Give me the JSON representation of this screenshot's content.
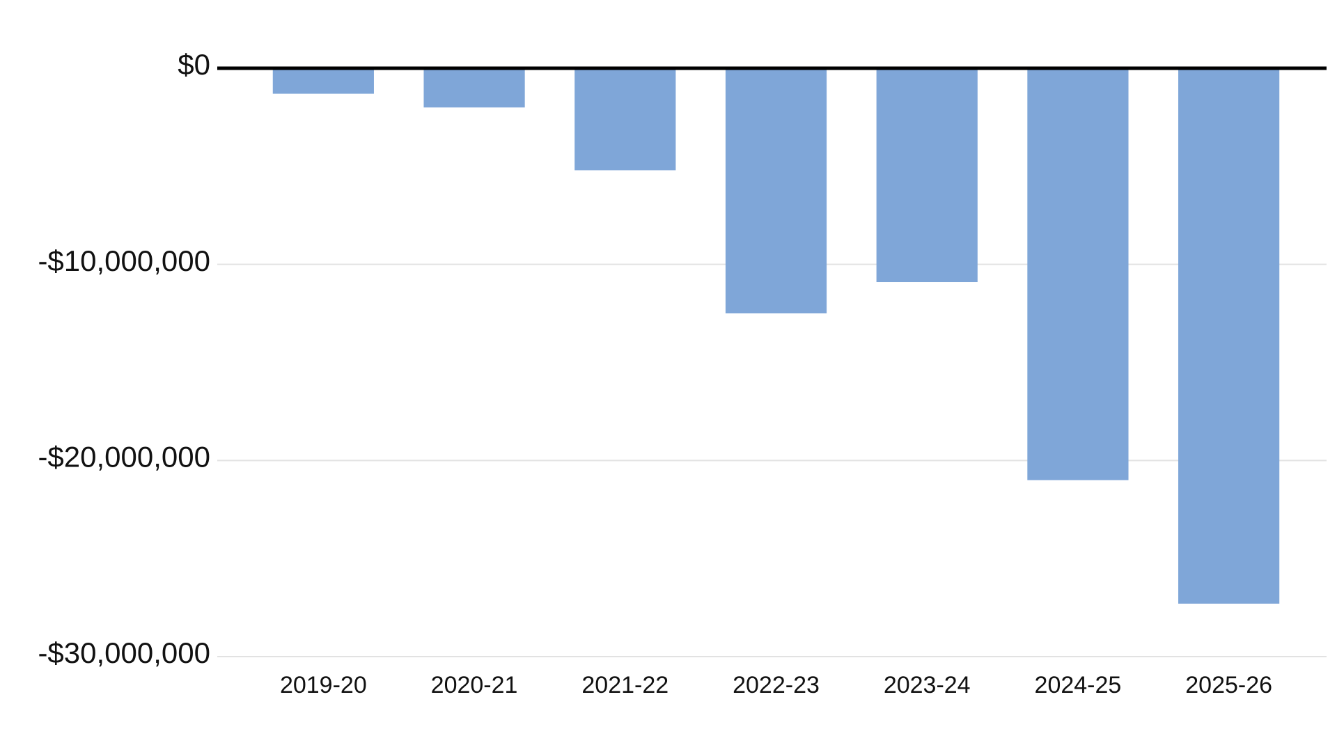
{
  "chart_data": {
    "type": "bar",
    "categories": [
      "2019-20",
      "2020-21",
      "2021-22",
      "2022-23",
      "2023-24",
      "2024-25",
      "2025-26"
    ],
    "values": [
      -1300000,
      -2000000,
      -5200000,
      -12500000,
      -10900000,
      -21000000,
      -27300000
    ],
    "color": "#7fa6d8",
    "ylim": [
      -30000000,
      0
    ],
    "yticks": [
      {
        "value": 0,
        "label": "$0"
      },
      {
        "value": -10000000,
        "label": "-$10,000,000"
      },
      {
        "value": -20000000,
        "label": "-$20,000,000"
      },
      {
        "value": -30000000,
        "label": "-$30,000,000"
      }
    ],
    "grid": true
  }
}
